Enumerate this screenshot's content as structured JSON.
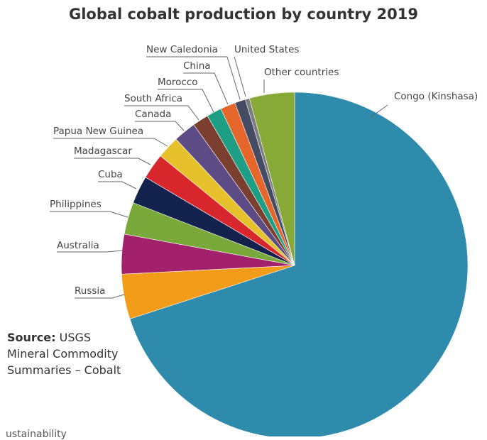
{
  "chart_data": {
    "type": "pie",
    "title": "Global cobalt production by country 2019",
    "units": "share of global production (%)",
    "slices": [
      {
        "label": "Congo (Kinshasa)",
        "value": 70.0,
        "color": "#2e8bab"
      },
      {
        "label": "Russia",
        "value": 4.2,
        "color": "#f29c1a"
      },
      {
        "label": "Australia",
        "value": 3.7,
        "color": "#a3206c"
      },
      {
        "label": "Philippines",
        "value": 3.0,
        "color": "#7ba83b"
      },
      {
        "label": "Cuba",
        "value": 2.6,
        "color": "#12224d"
      },
      {
        "label": "Madagascar",
        "value": 2.4,
        "color": "#d8262d"
      },
      {
        "label": "Papua New Guinea",
        "value": 2.1,
        "color": "#e6c12b"
      },
      {
        "label": "Canada",
        "value": 2.1,
        "color": "#5d4b86"
      },
      {
        "label": "South Africa",
        "value": 1.5,
        "color": "#7a3f2f"
      },
      {
        "label": "Morocco",
        "value": 1.4,
        "color": "#1f9e86"
      },
      {
        "label": "China",
        "value": 1.4,
        "color": "#e4662a"
      },
      {
        "label": "New Caledonia",
        "value": 1.0,
        "color": "#444b63"
      },
      {
        "label": "United States",
        "value": 0.4,
        "color": "#7b7d80"
      },
      {
        "label": "Other countries",
        "value": 4.2,
        "color": "#86a938"
      }
    ]
  },
  "source": {
    "prefix": "Source:",
    "line1": "USGS",
    "line2": "Mineral Commodity",
    "line3": "Summaries – Cobalt"
  },
  "footer_fragment": "ustainability"
}
